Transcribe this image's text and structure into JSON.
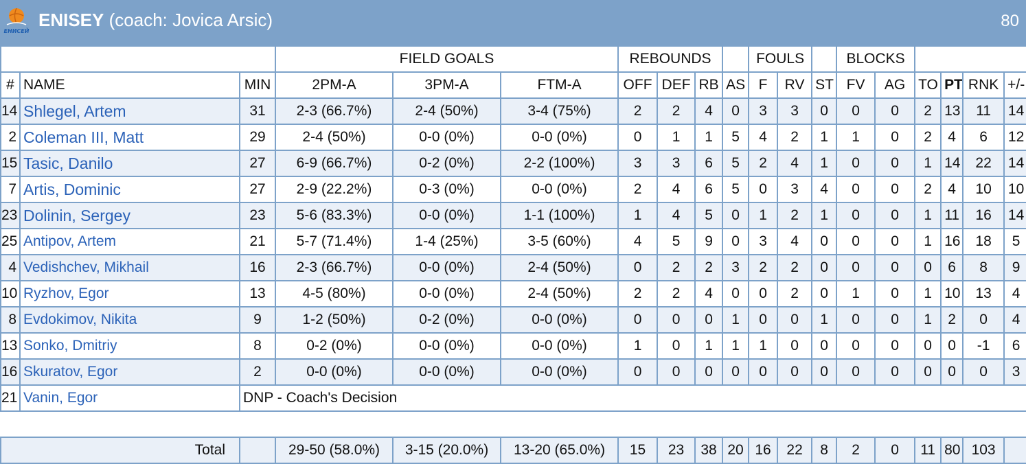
{
  "header": {
    "team": "ENISEY",
    "coach": "(coach: Jovica Arsic)",
    "score": "80",
    "logo_text": "ЕНИСЕЙ",
    "bg_color": "#7da2c9"
  },
  "groups": {
    "field_goals": "FIELD GOALS",
    "rebounds": "REBOUNDS",
    "fouls": "FOULS",
    "blocks": "BLOCKS"
  },
  "columns": [
    "#",
    "NAME",
    "MIN",
    "2PM-A",
    "3PM-A",
    "FTM-A",
    "OFF",
    "DEF",
    "RB",
    "AS",
    "F",
    "RV",
    "ST",
    "FV",
    "AG",
    "TO",
    "PT",
    "RNK",
    "+/-"
  ],
  "players": [
    {
      "num": "14",
      "name": "Shlegel, Artem",
      "starter": true,
      "min": "31",
      "p2": "2-3 (66.7%)",
      "p3": "2-4 (50%)",
      "ft": "3-4 (75%)",
      "off": "2",
      "def": "2",
      "rb": "4",
      "as": "0",
      "f": "3",
      "rv": "3",
      "st": "0",
      "fv": "0",
      "ag": "0",
      "to": "2",
      "pt": "13",
      "rnk": "11",
      "pm": "14"
    },
    {
      "num": "2",
      "name": "Coleman III, Matt",
      "starter": true,
      "min": "29",
      "p2": "2-4 (50%)",
      "p3": "0-0 (0%)",
      "ft": "0-0 (0%)",
      "off": "0",
      "def": "1",
      "rb": "1",
      "as": "5",
      "f": "4",
      "rv": "2",
      "st": "1",
      "fv": "1",
      "ag": "0",
      "to": "2",
      "pt": "4",
      "rnk": "6",
      "pm": "12"
    },
    {
      "num": "15",
      "name": "Tasic, Danilo",
      "starter": true,
      "min": "27",
      "p2": "6-9 (66.7%)",
      "p3": "0-2 (0%)",
      "ft": "2-2 (100%)",
      "off": "3",
      "def": "3",
      "rb": "6",
      "as": "5",
      "f": "2",
      "rv": "4",
      "st": "1",
      "fv": "0",
      "ag": "0",
      "to": "1",
      "pt": "14",
      "rnk": "22",
      "pm": "14"
    },
    {
      "num": "7",
      "name": "Artis, Dominic",
      "starter": true,
      "min": "27",
      "p2": "2-9 (22.2%)",
      "p3": "0-3 (0%)",
      "ft": "0-0 (0%)",
      "off": "2",
      "def": "4",
      "rb": "6",
      "as": "5",
      "f": "0",
      "rv": "3",
      "st": "4",
      "fv": "0",
      "ag": "0",
      "to": "2",
      "pt": "4",
      "rnk": "10",
      "pm": "10"
    },
    {
      "num": "23",
      "name": "Dolinin, Sergey",
      "starter": true,
      "min": "23",
      "p2": "5-6 (83.3%)",
      "p3": "0-0 (0%)",
      "ft": "1-1 (100%)",
      "off": "1",
      "def": "4",
      "rb": "5",
      "as": "0",
      "f": "1",
      "rv": "2",
      "st": "1",
      "fv": "0",
      "ag": "0",
      "to": "1",
      "pt": "11",
      "rnk": "16",
      "pm": "14"
    },
    {
      "num": "25",
      "name": "Antipov, Artem",
      "starter": false,
      "min": "21",
      "p2": "5-7 (71.4%)",
      "p3": "1-4 (25%)",
      "ft": "3-5 (60%)",
      "off": "4",
      "def": "5",
      "rb": "9",
      "as": "0",
      "f": "3",
      "rv": "4",
      "st": "0",
      "fv": "0",
      "ag": "0",
      "to": "1",
      "pt": "16",
      "rnk": "18",
      "pm": "5"
    },
    {
      "num": "4",
      "name": "Vedishchev, Mikhail",
      "starter": false,
      "min": "16",
      "p2": "2-3 (66.7%)",
      "p3": "0-0 (0%)",
      "ft": "2-4 (50%)",
      "off": "0",
      "def": "2",
      "rb": "2",
      "as": "3",
      "f": "2",
      "rv": "2",
      "st": "0",
      "fv": "0",
      "ag": "0",
      "to": "0",
      "pt": "6",
      "rnk": "8",
      "pm": "9"
    },
    {
      "num": "10",
      "name": "Ryzhov, Egor",
      "starter": false,
      "min": "13",
      "p2": "4-5 (80%)",
      "p3": "0-0 (0%)",
      "ft": "2-4 (50%)",
      "off": "2",
      "def": "2",
      "rb": "4",
      "as": "0",
      "f": "0",
      "rv": "2",
      "st": "0",
      "fv": "1",
      "ag": "0",
      "to": "1",
      "pt": "10",
      "rnk": "13",
      "pm": "4"
    },
    {
      "num": "8",
      "name": "Evdokimov, Nikita",
      "starter": false,
      "min": "9",
      "p2": "1-2 (50%)",
      "p3": "0-2 (0%)",
      "ft": "0-0 (0%)",
      "off": "0",
      "def": "0",
      "rb": "0",
      "as": "1",
      "f": "0",
      "rv": "0",
      "st": "1",
      "fv": "0",
      "ag": "0",
      "to": "1",
      "pt": "2",
      "rnk": "0",
      "pm": "4"
    },
    {
      "num": "13",
      "name": "Sonko, Dmitriy",
      "starter": false,
      "min": "8",
      "p2": "0-2 (0%)",
      "p3": "0-0 (0%)",
      "ft": "0-0 (0%)",
      "off": "1",
      "def": "0",
      "rb": "1",
      "as": "1",
      "f": "1",
      "rv": "0",
      "st": "0",
      "fv": "0",
      "ag": "0",
      "to": "0",
      "pt": "0",
      "rnk": "-1",
      "pm": "6"
    },
    {
      "num": "16",
      "name": "Skuratov, Egor",
      "starter": false,
      "min": "2",
      "p2": "0-0 (0%)",
      "p3": "0-0 (0%)",
      "ft": "0-0 (0%)",
      "off": "0",
      "def": "0",
      "rb": "0",
      "as": "0",
      "f": "0",
      "rv": "0",
      "st": "0",
      "fv": "0",
      "ag": "0",
      "to": "0",
      "pt": "0",
      "rnk": "0",
      "pm": "3"
    }
  ],
  "dnp": {
    "num": "21",
    "name": "Vanin, Egor",
    "note": "DNP - Coach's Decision"
  },
  "totals": {
    "label": "Total",
    "p2": "29-50 (58.0%)",
    "p3": "3-15 (20.0%)",
    "ft": "13-20 (65.0%)",
    "off": "15",
    "def": "23",
    "rb": "38",
    "as": "20",
    "f": "16",
    "rv": "22",
    "st": "8",
    "fv": "2",
    "ag": "0",
    "to": "11",
    "pt": "80",
    "rnk": "103"
  }
}
